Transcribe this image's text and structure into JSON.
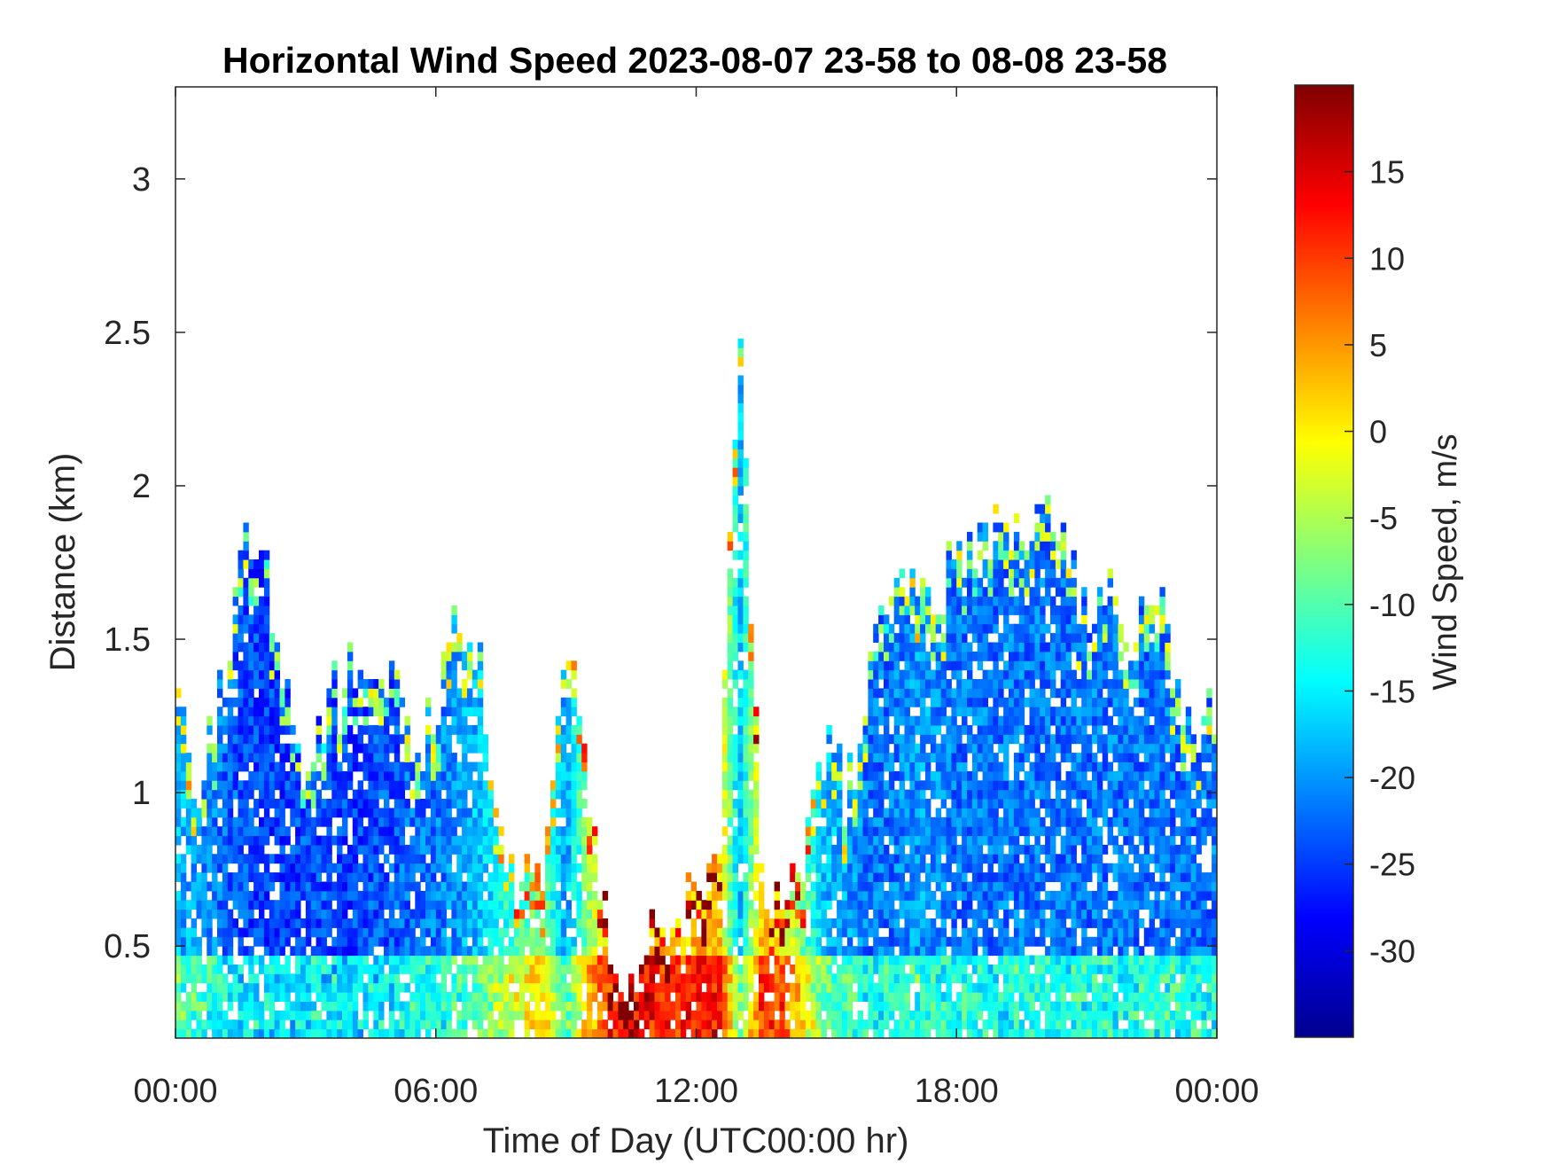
{
  "chart_data": {
    "type": "heatmap",
    "title": "Horizontal Wind Speed 2023-08-07 23-58 to 08-08 23-58",
    "xlabel": "Time of Day (UTC00:00 hr)",
    "ylabel": "Distance (km)",
    "xlim": [
      0,
      24
    ],
    "ylim": [
      0.2,
      3.3
    ],
    "x_ticks": [
      {
        "value": 0,
        "label": "00:00"
      },
      {
        "value": 6,
        "label": "06:00"
      },
      {
        "value": 12,
        "label": "12:00"
      },
      {
        "value": 18,
        "label": "18:00"
      },
      {
        "value": 24,
        "label": "00:00"
      }
    ],
    "y_ticks": [
      {
        "value": 0.5,
        "label": "0.5"
      },
      {
        "value": 1,
        "label": "1"
      },
      {
        "value": 1.5,
        "label": "1.5"
      },
      {
        "value": 2,
        "label": "2"
      },
      {
        "value": 2.5,
        "label": "2.5"
      },
      {
        "value": 3,
        "label": "3"
      }
    ],
    "colorbar": {
      "label": "Wind Speed, m/s",
      "range": [
        -35,
        20
      ],
      "colormap": "jet",
      "ticks": [
        {
          "value": 15,
          "label": "15"
        },
        {
          "value": 10,
          "label": "10"
        },
        {
          "value": 5,
          "label": "5"
        },
        {
          "value": 0,
          "label": "0"
        },
        {
          "value": -5,
          "label": "-5"
        },
        {
          "value": -10,
          "label": "-10"
        },
        {
          "value": -15,
          "label": "-15"
        },
        {
          "value": -20,
          "label": "-20"
        },
        {
          "value": -25,
          "label": "-25"
        },
        {
          "value": -30,
          "label": "-30"
        }
      ]
    },
    "grid": false,
    "legend": "none",
    "approximate_data_extent": {
      "description_hours_km": "estimated top of valid returns (km) per time of day (h)",
      "time_h": [
        0,
        0.5,
        1,
        1.5,
        2,
        2.5,
        3,
        3.5,
        4,
        4.5,
        5,
        5.5,
        6,
        6.5,
        7,
        7.5,
        8,
        8.5,
        9,
        9.5,
        10,
        10.5,
        11,
        11.5,
        12,
        12.5,
        13,
        13.5,
        14,
        14.5,
        15,
        15.5,
        16,
        16.5,
        17,
        17.5,
        18,
        18.5,
        19,
        19.5,
        20,
        20.5,
        21,
        21.5,
        22,
        22.5,
        23,
        23.5,
        24
      ],
      "top_km": [
        1.5,
        1.0,
        1.3,
        1.75,
        1.8,
        1.3,
        1.0,
        1.3,
        1.4,
        1.3,
        1.45,
        1.1,
        1.3,
        1.5,
        1.4,
        0.8,
        0.7,
        0.7,
        1.6,
        1.0,
        0.5,
        0.4,
        0.5,
        0.6,
        0.65,
        0.75,
        2.6,
        0.7,
        0.65,
        0.8,
        1.1,
        1.0,
        1.4,
        1.6,
        1.7,
        1.55,
        1.75,
        1.8,
        1.9,
        1.8,
        1.85,
        1.75,
        1.6,
        1.7,
        1.5,
        1.7,
        1.4,
        1.2,
        1.3
      ],
      "typical_speed_ms": [
        -18,
        -20,
        -22,
        -24,
        -25,
        -25,
        -24,
        -24,
        -25,
        -24,
        -24,
        -22,
        -22,
        -20,
        -18,
        -14,
        -10,
        -8,
        -20,
        -6,
        2,
        6,
        4,
        2,
        3,
        4,
        -18,
        2,
        0,
        -10,
        -18,
        -20,
        -22,
        -22,
        -20,
        -20,
        -22,
        -22,
        -22,
        -22,
        -22,
        -22,
        -22,
        -22,
        -22,
        -22,
        -22,
        -22,
        -22
      ]
    }
  }
}
